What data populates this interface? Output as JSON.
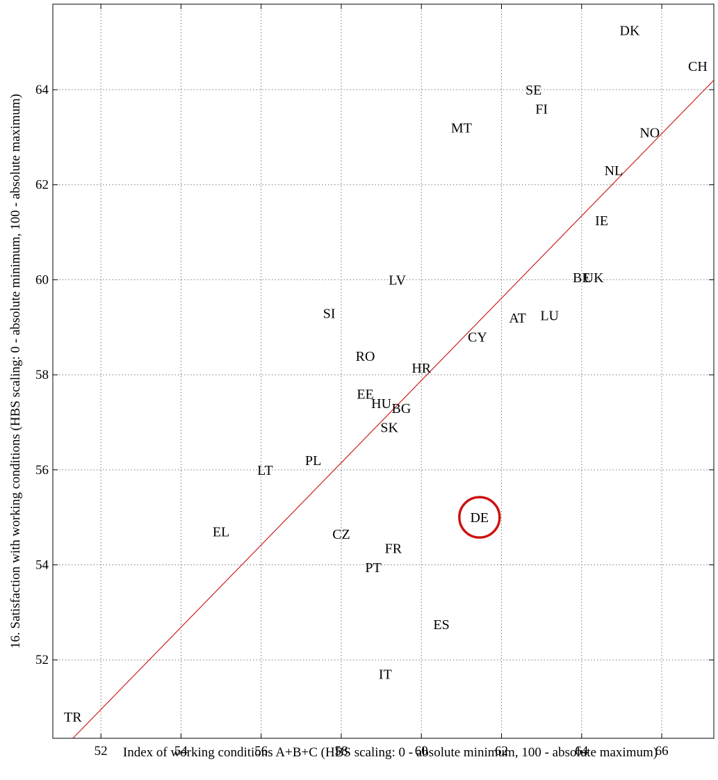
{
  "chart_data": {
    "type": "scatter",
    "title": "",
    "xlabel": "Index of working conditions A+B+C  (HBS scaling: 0 - absolute minimum, 100 - absolute maximum)",
    "ylabel": "16. Satisfaction with working conditions (HBS scaling: 0 - absolute minimum, 100 - absolute maximum)",
    "xlim": [
      50.8,
      67.3
    ],
    "ylim": [
      50.35,
      65.8
    ],
    "xticks": [
      52,
      54,
      56,
      58,
      60,
      62,
      64,
      66
    ],
    "yticks": [
      52,
      54,
      56,
      58,
      60,
      62,
      64
    ],
    "grid": true,
    "points": [
      {
        "label": "DK",
        "x": 65.2,
        "y": 65.25
      },
      {
        "label": "CH",
        "x": 66.9,
        "y": 64.5
      },
      {
        "label": "SE",
        "x": 62.8,
        "y": 64.0
      },
      {
        "label": "FI",
        "x": 63.0,
        "y": 63.6
      },
      {
        "label": "MT",
        "x": 61.0,
        "y": 63.2
      },
      {
        "label": "NO",
        "x": 65.7,
        "y": 63.1
      },
      {
        "label": "NL",
        "x": 64.8,
        "y": 62.3
      },
      {
        "label": "IE",
        "x": 64.5,
        "y": 61.25
      },
      {
        "label": "BE",
        "x": 64.0,
        "y": 60.05
      },
      {
        "label": "UK",
        "x": 64.3,
        "y": 60.05
      },
      {
        "label": "LV",
        "x": 59.4,
        "y": 60.0
      },
      {
        "label": "AT",
        "x": 62.4,
        "y": 59.2
      },
      {
        "label": "LU",
        "x": 63.2,
        "y": 59.25
      },
      {
        "label": "SI",
        "x": 57.7,
        "y": 59.3
      },
      {
        "label": "CY",
        "x": 61.4,
        "y": 58.8
      },
      {
        "label": "RO",
        "x": 58.6,
        "y": 58.4
      },
      {
        "label": "HR",
        "x": 60.0,
        "y": 58.15
      },
      {
        "label": "EE",
        "x": 58.6,
        "y": 57.6
      },
      {
        "label": "HU",
        "x": 59.0,
        "y": 57.4
      },
      {
        "label": "BG",
        "x": 59.5,
        "y": 57.3
      },
      {
        "label": "SK",
        "x": 59.2,
        "y": 56.9
      },
      {
        "label": "PL",
        "x": 57.3,
        "y": 56.2
      },
      {
        "label": "LT",
        "x": 56.1,
        "y": 56.0
      },
      {
        "label": "DE",
        "x": 61.45,
        "y": 55.0,
        "highlighted": true
      },
      {
        "label": "EL",
        "x": 55.0,
        "y": 54.7
      },
      {
        "label": "CZ",
        "x": 58.0,
        "y": 54.65
      },
      {
        "label": "FR",
        "x": 59.3,
        "y": 54.35
      },
      {
        "label": "PT",
        "x": 58.8,
        "y": 53.95
      },
      {
        "label": "ES",
        "x": 60.5,
        "y": 52.75
      },
      {
        "label": "IT",
        "x": 59.1,
        "y": 51.7
      },
      {
        "label": "TR",
        "x": 51.3,
        "y": 50.8
      }
    ],
    "fit_line": {
      "x": [
        51.3,
        67.3
      ],
      "y": [
        50.35,
        64.2
      ],
      "color": "#cc2222"
    },
    "highlight_color": "#cc1111"
  }
}
